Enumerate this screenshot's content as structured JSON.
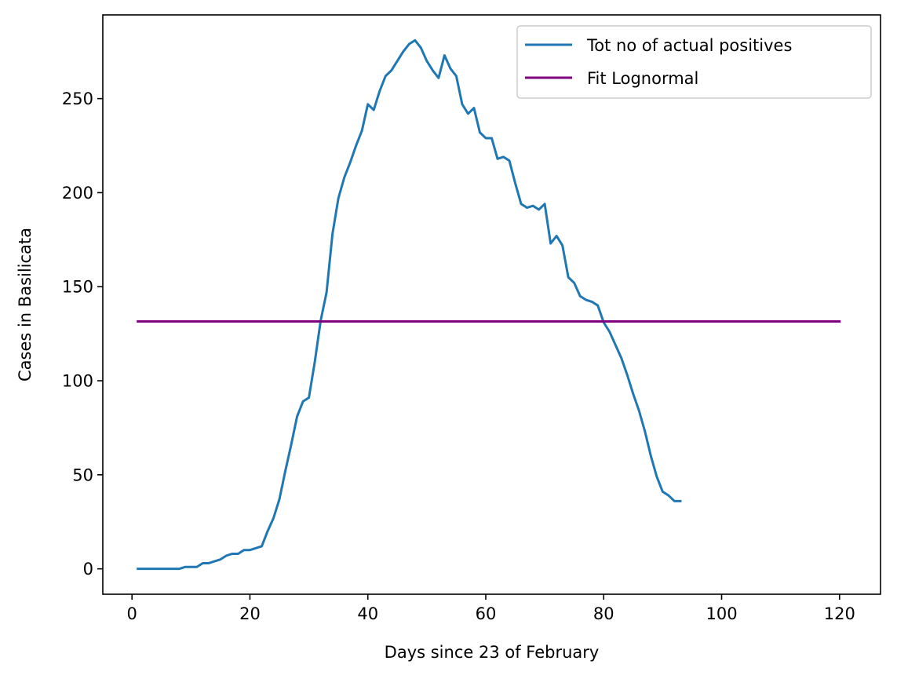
{
  "chart_data": {
    "type": "line",
    "title": "",
    "xlabel": "Days since 23 of February",
    "ylabel": "Cases in Basilicata",
    "xlim": [
      -4.95,
      126.95
    ],
    "ylim": [
      -13.5,
      294.5
    ],
    "xticks": [
      0,
      20,
      40,
      60,
      80,
      100,
      120
    ],
    "yticks": [
      0,
      50,
      100,
      150,
      200,
      250
    ],
    "grid": false,
    "legend_position": "top-right",
    "series": [
      {
        "name": "Tot no of actual positives",
        "color": "#1f77b4",
        "x": [
          1,
          2,
          3,
          4,
          5,
          6,
          7,
          8,
          9,
          10,
          11,
          12,
          13,
          14,
          15,
          16,
          17,
          18,
          19,
          20,
          21,
          22,
          23,
          24,
          25,
          26,
          27,
          28,
          29,
          30,
          31,
          32,
          33,
          34,
          35,
          36,
          37,
          38,
          39,
          40,
          41,
          42,
          43,
          44,
          45,
          46,
          47,
          48,
          49,
          50,
          51,
          52,
          53,
          54,
          55,
          56,
          57,
          58,
          59,
          60,
          61,
          62,
          63,
          64,
          65,
          66,
          67,
          68,
          69,
          70,
          71,
          72,
          73,
          74,
          75,
          76,
          77,
          78,
          79,
          80,
          81,
          82,
          83,
          84,
          85,
          86,
          87,
          88,
          89,
          90,
          91,
          92,
          93
        ],
        "y": [
          0,
          0,
          0,
          0,
          0,
          0,
          0,
          0,
          1,
          1,
          1,
          3,
          3,
          4,
          5,
          7,
          8,
          8,
          10,
          10,
          11,
          12,
          20,
          27,
          37,
          52,
          66,
          81,
          89,
          91,
          110,
          132,
          147,
          178,
          197,
          208,
          216,
          225,
          233,
          247,
          244,
          254,
          262,
          265,
          270,
          275,
          279,
          281,
          277,
          270,
          265,
          261,
          273,
          266,
          262,
          247,
          242,
          245,
          232,
          229,
          229,
          218,
          219,
          217,
          205,
          194,
          192,
          193,
          191,
          194,
          173,
          177,
          172,
          155,
          152,
          145,
          143,
          142,
          140,
          131,
          126,
          119,
          112,
          103,
          93,
          84,
          73,
          60,
          49,
          41,
          39,
          36,
          36
        ]
      },
      {
        "name": "Fit Lognormal",
        "color": "#800080",
        "x": [
          1,
          120
        ],
        "y": [
          131.5,
          131.5
        ]
      }
    ]
  }
}
